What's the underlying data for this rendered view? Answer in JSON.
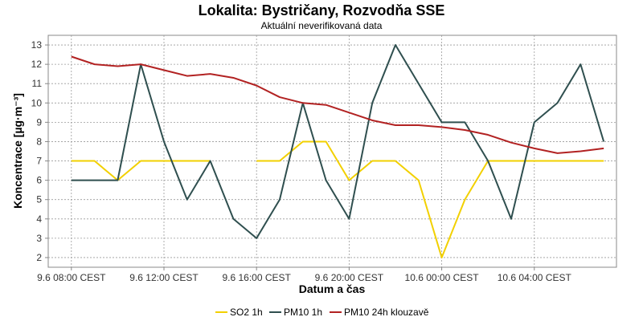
{
  "chart_data": {
    "type": "line",
    "title": "Lokalita: Bystričany, Rozvodňa SSE",
    "subtitle": "Aktuální neverifikovaná data",
    "xlabel": "Datum a čas",
    "ylabel": "Koncentrace [µg·m⁻³]",
    "x_start": "2020-06-09 08:00",
    "x": [
      "9.6 08:00",
      "9.6 09:00",
      "9.6 10:00",
      "9.6 11:00",
      "9.6 12:00",
      "9.6 13:00",
      "9.6 14:00",
      "9.6 15:00",
      "9.6 16:00",
      "9.6 17:00",
      "9.6 18:00",
      "9.6 19:00",
      "9.6 20:00",
      "9.6 21:00",
      "9.6 22:00",
      "9.6 23:00",
      "10.6 00:00",
      "10.6 01:00",
      "10.6 02:00",
      "10.6 03:00",
      "10.6 04:00",
      "10.6 05:00",
      "10.6 06:00",
      "10.6 07:00"
    ],
    "x_ticks": [
      "9.6 08:00 CEST",
      "9.6 12:00 CEST",
      "9.6 16:00 CEST",
      "9.6 20:00 CEST",
      "10.6 00:00 CEST",
      "10.6 04:00 CEST"
    ],
    "x_tick_hours": [
      0,
      4,
      8,
      12,
      16,
      20
    ],
    "x_range_hours": [
      -1,
      23.55
    ],
    "ylim": [
      1.5,
      13.5
    ],
    "y_ticks": [
      2,
      3,
      4,
      5,
      6,
      7,
      8,
      9,
      10,
      11,
      12,
      13
    ],
    "grid": true,
    "legend_position": "bottom",
    "series": [
      {
        "name": "SO2 1h",
        "color": "#f2d000",
        "values": [
          7,
          7,
          6,
          7,
          7,
          7,
          7,
          null,
          7,
          7,
          8,
          8,
          6,
          7,
          7,
          6,
          2,
          5,
          7,
          7,
          7,
          7,
          7,
          7
        ]
      },
      {
        "name": "PM10 1h",
        "color": "#2f4f4f",
        "values": [
          6,
          6,
          6,
          12,
          8,
          5,
          7,
          4,
          3,
          5,
          10,
          6,
          4,
          10,
          13,
          11,
          9,
          9,
          7,
          4,
          9,
          10,
          12,
          8
        ]
      },
      {
        "name": "PM10 24h klouzavě",
        "color": "#b22222",
        "values": [
          12.4,
          12.0,
          11.9,
          12.0,
          11.7,
          11.4,
          11.5,
          11.3,
          10.9,
          10.3,
          10.0,
          9.9,
          9.5,
          9.1,
          8.85,
          8.85,
          8.75,
          8.6,
          8.35,
          7.95,
          7.65,
          7.4,
          7.5,
          7.65
        ]
      }
    ]
  }
}
